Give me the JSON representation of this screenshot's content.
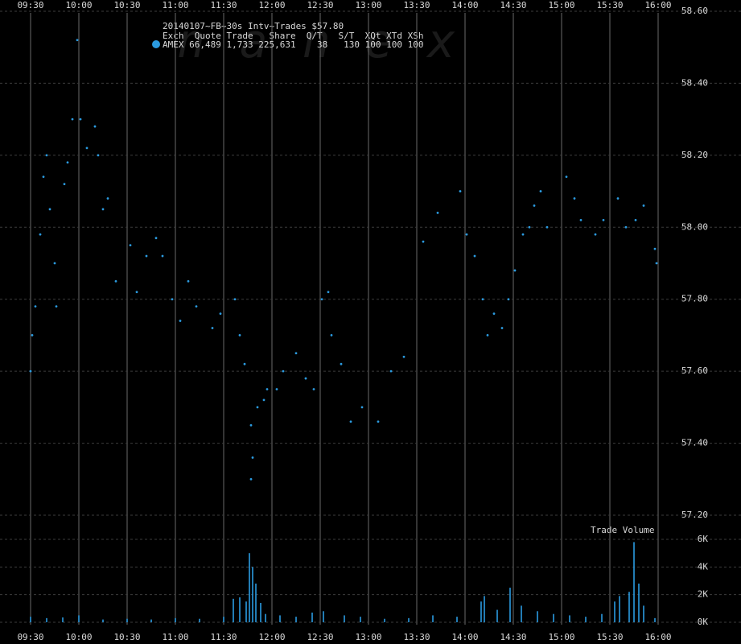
{
  "chart_data": [
    {
      "type": "scatter",
      "title": "20140107~FB~30s Intv~Trades $57.80",
      "legend_header": "Exch  Quote Trade   Share  Q/T   S/T  XQt XTd XSh",
      "watermark": "n a n e x",
      "xlim": [
        "09:30",
        "16:00"
      ],
      "xticks": [
        "09:30",
        "10:00",
        "10:30",
        "11:00",
        "11:30",
        "12:00",
        "12:30",
        "13:00",
        "13:30",
        "14:00",
        "14:30",
        "15:00",
        "15:30",
        "16:00"
      ],
      "ylim": [
        57.2,
        58.6
      ],
      "yticks": [
        {
          "value": 57.2,
          "label": "57.20"
        },
        {
          "value": 57.4,
          "label": "57.40"
        },
        {
          "value": 57.6,
          "label": "57.60"
        },
        {
          "value": 57.8,
          "label": "57.80"
        },
        {
          "value": 58,
          "label": "58.00"
        },
        {
          "value": 58.2,
          "label": "58.20"
        },
        {
          "value": 58.4,
          "label": "58.40"
        },
        {
          "value": 58.6,
          "label": "58.60"
        }
      ],
      "grid": true,
      "x": [
        "09:30",
        "09:31",
        "09:33",
        "09:36",
        "09:38",
        "09:40",
        "09:42",
        "09:45",
        "09:46",
        "09:51",
        "09:53",
        "09:56",
        "09:59",
        "10:01",
        "10:05",
        "10:10",
        "10:12",
        "10:15",
        "10:18",
        "10:23",
        "10:32",
        "10:36",
        "10:42",
        "10:48",
        "10:52",
        "10:58",
        "11:03",
        "11:08",
        "11:13",
        "11:23",
        "11:28",
        "11:37",
        "11:40",
        "11:43",
        "11:47",
        "11:47",
        "11:48",
        "11:51",
        "11:55",
        "11:57",
        "12:03",
        "12:07",
        "12:15",
        "12:21",
        "12:26",
        "12:31",
        "12:35",
        "12:37",
        "12:43",
        "12:49",
        "12:56",
        "13:06",
        "13:14",
        "13:22",
        "13:34",
        "13:43",
        "13:57",
        "14:01",
        "14:06",
        "14:11",
        "14:14",
        "14:18",
        "14:23",
        "14:27",
        "14:31",
        "14:36",
        "14:40",
        "14:43",
        "14:47",
        "14:51",
        "15:03",
        "15:08",
        "15:12",
        "15:21",
        "15:26",
        "15:35",
        "15:40",
        "15:46",
        "15:51",
        "15:58",
        "15:59"
      ],
      "series": [
        {
          "name": "AMEX 66,489 1,733 225,631    38   130 100 100 100",
          "color": "#2b9be0",
          "values": [
            57.6,
            57.7,
            57.78,
            57.98,
            58.14,
            58.2,
            58.05,
            57.9,
            57.78,
            58.12,
            58.18,
            58.3,
            58.52,
            58.3,
            58.22,
            58.28,
            58.2,
            58.05,
            58.08,
            57.85,
            57.95,
            57.82,
            57.92,
            57.97,
            57.92,
            57.8,
            57.74,
            57.85,
            57.78,
            57.72,
            57.76,
            57.8,
            57.7,
            57.62,
            57.45,
            57.3,
            57.36,
            57.5,
            57.52,
            57.55,
            57.55,
            57.6,
            57.65,
            57.58,
            57.55,
            57.8,
            57.82,
            57.7,
            57.62,
            57.46,
            57.5,
            57.46,
            57.6,
            57.64,
            57.96,
            58.04,
            58.1,
            57.98,
            57.92,
            57.8,
            57.7,
            57.76,
            57.72,
            57.8,
            57.88,
            57.98,
            58,
            58.06,
            58.1,
            58,
            58.14,
            58.08,
            58.02,
            57.98,
            58.02,
            58.08,
            58,
            58.02,
            58.06,
            57.94,
            57.9
          ]
        }
      ]
    },
    {
      "type": "bar",
      "label": "Trade Volume",
      "color": "#2b9be0",
      "ylim": [
        0,
        6000
      ],
      "yticks": [
        {
          "value": 0,
          "label": "0K"
        },
        {
          "value": 2000,
          "label": "2K"
        },
        {
          "value": 4000,
          "label": "4K"
        },
        {
          "value": 6000,
          "label": "6K"
        }
      ],
      "x": [
        "09:30",
        "09:40",
        "09:50",
        "10:00",
        "10:15",
        "10:30",
        "10:45",
        "11:00",
        "11:15",
        "11:30",
        "11:36",
        "11:40",
        "11:44",
        "11:46",
        "11:48",
        "11:50",
        "11:53",
        "11:56",
        "12:05",
        "12:15",
        "12:25",
        "12:32",
        "12:45",
        "12:55",
        "13:10",
        "13:25",
        "13:40",
        "13:55",
        "14:10",
        "14:12",
        "14:20",
        "14:28",
        "14:35",
        "14:45",
        "14:55",
        "15:05",
        "15:15",
        "15:25",
        "15:33",
        "15:36",
        "15:42",
        "15:45",
        "15:48",
        "15:51",
        "15:58"
      ],
      "values": [
        400,
        300,
        350,
        500,
        200,
        250,
        200,
        300,
        250,
        400,
        1700,
        1800,
        1500,
        5000,
        4000,
        2800,
        1400,
        600,
        500,
        400,
        700,
        800,
        500,
        400,
        250,
        300,
        500,
        400,
        1500,
        1900,
        900,
        2500,
        1200,
        800,
        600,
        500,
        400,
        600,
        1500,
        1900,
        2200,
        5800,
        2800,
        1200,
        300
      ]
    }
  ]
}
